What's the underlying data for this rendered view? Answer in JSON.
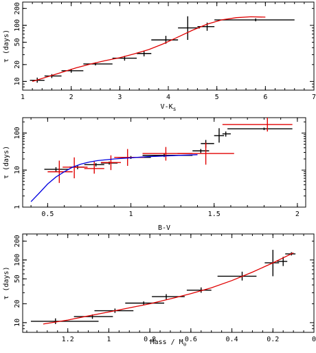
{
  "chart_data": [
    {
      "type": "scatter",
      "xlabel": "V-K",
      "xlabel_sub": "s",
      "ylabel": "τ (days)",
      "xscale": "linear",
      "yscale": "log",
      "xlim": [
        1,
        7
      ],
      "ylim": [
        7,
        260
      ],
      "x_ticks": [
        1,
        2,
        3,
        4,
        5,
        6,
        7
      ],
      "y_ticks": [
        10,
        20,
        50,
        100,
        200
      ],
      "series": [
        {
          "style": "black errorbar",
          "points": [
            {
              "x": 1.3,
              "y": 10.5,
              "xerr": [
                1.15,
                1.45
              ],
              "yerr": [
                9.5,
                11.7
              ]
            },
            {
              "x": 1.6,
              "y": 12.5,
              "xerr": [
                1.45,
                1.8
              ],
              "yerr": [
                11.5,
                13.5
              ]
            },
            {
              "x": 2.0,
              "y": 15.5,
              "xerr": [
                1.8,
                2.25
              ],
              "yerr": [
                14.3,
                16.8
              ]
            },
            {
              "x": 2.5,
              "y": 20.5,
              "xerr": [
                2.25,
                2.85
              ],
              "yerr": [
                19.3,
                21.8
              ]
            },
            {
              "x": 3.1,
              "y": 26.0,
              "xerr": [
                2.85,
                3.35
              ],
              "yerr": [
                23.5,
                28.5
              ]
            },
            {
              "x": 3.5,
              "y": 31.5,
              "xerr": [
                3.35,
                3.65
              ],
              "yerr": [
                28.0,
                35.5
              ]
            },
            {
              "x": 3.95,
              "y": 55.0,
              "xerr": [
                3.65,
                4.2
              ],
              "yerr": [
                47.0,
                65.0
              ]
            },
            {
              "x": 4.4,
              "y": 90.0,
              "xerr": [
                4.2,
                4.65
              ],
              "yerr": [
                55.0,
                145.0
              ]
            },
            {
              "x": 4.8,
              "y": 95.0,
              "xerr": [
                4.6,
                4.95
              ],
              "yerr": [
                80.0,
                112.0
              ]
            },
            {
              "x": 5.8,
              "y": 125.0,
              "xerr": [
                4.95,
                6.6
              ],
              "yerr": [
                118.0,
                133.0
              ]
            }
          ]
        },
        {
          "style": "red fit line",
          "color": "#e00000",
          "x": [
            1.2,
            1.5,
            1.8,
            2.1,
            2.4,
            2.7,
            3.0,
            3.3,
            3.6,
            3.9,
            4.2,
            4.5,
            4.8,
            5.1,
            5.4,
            5.7,
            6.0
          ],
          "y": [
            10.0,
            12.0,
            14.5,
            17.5,
            20.5,
            23.5,
            26.5,
            31.0,
            37.0,
            47.0,
            62.0,
            82.0,
            105.0,
            125.0,
            137.0,
            142.0,
            140.0
          ]
        }
      ]
    },
    {
      "type": "scatter",
      "xlabel": "B-V",
      "ylabel": "τ (days)",
      "xscale": "linear",
      "yscale": "log",
      "xlim": [
        0.35,
        2.05
      ],
      "ylim": [
        1,
        260
      ],
      "x_ticks": [
        0.5,
        1,
        1.5,
        2
      ],
      "y_ticks": [
        1,
        10,
        100
      ],
      "series": [
        {
          "style": "black errorbar",
          "points": [
            {
              "x": 0.55,
              "y": 10.5,
              "xerr": [
                0.48,
                0.63
              ],
              "yerr": [
                9.0,
                12.0
              ]
            },
            {
              "x": 0.68,
              "y": 12.0,
              "xerr": [
                0.63,
                0.72
              ],
              "yerr": [
                10.5,
                13.5
              ]
            },
            {
              "x": 0.79,
              "y": 14.0,
              "xerr": [
                0.72,
                0.84
              ],
              "yerr": [
                12.5,
                15.5
              ]
            },
            {
              "x": 0.87,
              "y": 15.5,
              "xerr": [
                0.82,
                0.92
              ],
              "yerr": [
                14.0,
                17.0
              ]
            },
            {
              "x": 1.0,
              "y": 22.0,
              "xerr": [
                0.92,
                1.12
              ],
              "yerr": [
                20.0,
                24.0
              ]
            },
            {
              "x": 1.2,
              "y": 25.0,
              "xerr": [
                1.07,
                1.37
              ],
              "yerr": [
                22.5,
                27.5
              ]
            },
            {
              "x": 1.42,
              "y": 33.0,
              "xerr": [
                1.37,
                1.47
              ],
              "yerr": [
                29.0,
                37.0
              ]
            },
            {
              "x": 1.45,
              "y": 52.0,
              "xerr": [
                1.42,
                1.5
              ],
              "yerr": [
                40.0,
                65.0
              ]
            },
            {
              "x": 1.53,
              "y": 85.0,
              "xerr": [
                1.5,
                1.56
              ],
              "yerr": [
                55.0,
                135.0
              ]
            },
            {
              "x": 1.57,
              "y": 95.0,
              "xerr": [
                1.55,
                1.6
              ],
              "yerr": [
                80.0,
                110.0
              ]
            },
            {
              "x": 1.8,
              "y": 130.0,
              "xerr": [
                1.58,
                1.97
              ],
              "yerr": [
                120.0,
                140.0
              ]
            }
          ]
        },
        {
          "style": "red errorbar",
          "color": "#e00000",
          "points": [
            {
              "x": 0.57,
              "y": 9.0,
              "xerr": [
                0.5,
                0.65
              ],
              "yerr": [
                4.5,
                18.0
              ]
            },
            {
              "x": 0.66,
              "y": 12.0,
              "xerr": [
                0.59,
                0.74
              ],
              "yerr": [
                6.0,
                22.0
              ]
            },
            {
              "x": 0.78,
              "y": 11.0,
              "xerr": [
                0.72,
                0.84
              ],
              "yerr": [
                8.0,
                17.0
              ]
            },
            {
              "x": 0.88,
              "y": 16.0,
              "xerr": [
                0.82,
                0.94
              ],
              "yerr": [
                10.0,
                25.0
              ]
            },
            {
              "x": 0.98,
              "y": 22.0,
              "xerr": [
                0.9,
                1.08
              ],
              "yerr": [
                13.0,
                37.0
              ]
            },
            {
              "x": 1.21,
              "y": 28.0,
              "xerr": [
                1.07,
                1.37
              ],
              "yerr": [
                18.0,
                42.0
              ]
            },
            {
              "x": 1.45,
              "y": 28.0,
              "xerr": [
                1.28,
                1.62
              ],
              "yerr": [
                14.0,
                55.0
              ]
            },
            {
              "x": 1.82,
              "y": 170.0,
              "xerr": [
                1.55,
                1.97
              ],
              "yerr": [
                110.0,
                260.0
              ]
            }
          ]
        },
        {
          "style": "blue fit line",
          "color": "#0000e0",
          "x": [
            0.4,
            0.45,
            0.5,
            0.55,
            0.6,
            0.65,
            0.7,
            0.75,
            0.8,
            0.9,
            1.0,
            1.1,
            1.2,
            1.3,
            1.4
          ],
          "y": [
            1.4,
            2.4,
            4.2,
            6.5,
            9.0,
            12.0,
            14.5,
            16.5,
            18.0,
            20.0,
            21.5,
            23.0,
            24.0,
            25.0,
            26.0
          ]
        }
      ]
    },
    {
      "type": "scatter",
      "xlabel": "Mass / M",
      "xlabel_sub": "⊙",
      "ylabel": "τ (days)",
      "xscale": "linear",
      "x_reversed": true,
      "yscale": "log",
      "xlim": [
        1.42,
        0.0
      ],
      "ylim": [
        7,
        260
      ],
      "x_ticks": [
        1.2,
        1,
        0.8,
        0.6,
        0.4,
        0.2,
        0
      ],
      "y_ticks": [
        10,
        20,
        50,
        100,
        200
      ],
      "series": [
        {
          "style": "black errorbar",
          "points": [
            {
              "x": 1.26,
              "y": 10.5,
              "xerr": [
                1.05,
                1.38
              ],
              "yerr": [
                9.5,
                11.7
              ]
            },
            {
              "x": 1.08,
              "y": 12.5,
              "xerr": [
                0.98,
                1.17
              ],
              "yerr": [
                11.5,
                13.5
              ]
            },
            {
              "x": 0.97,
              "y": 15.5,
              "xerr": [
                0.88,
                1.07
              ],
              "yerr": [
                14.3,
                16.8
              ]
            },
            {
              "x": 0.83,
              "y": 20.5,
              "xerr": [
                0.73,
                0.92
              ],
              "yerr": [
                19.3,
                21.8
              ]
            },
            {
              "x": 0.72,
              "y": 26.0,
              "xerr": [
                0.63,
                0.79
              ],
              "yerr": [
                23.5,
                28.5
              ]
            },
            {
              "x": 0.55,
              "y": 33.0,
              "xerr": [
                0.5,
                0.62
              ],
              "yerr": [
                30.0,
                36.5
              ]
            },
            {
              "x": 0.35,
              "y": 55.0,
              "xerr": [
                0.28,
                0.47
              ],
              "yerr": [
                47.0,
                65.0
              ]
            },
            {
              "x": 0.2,
              "y": 90.0,
              "xerr": [
                0.17,
                0.24
              ],
              "yerr": [
                55.0,
                145.0
              ]
            },
            {
              "x": 0.15,
              "y": 95.0,
              "xerr": [
                0.13,
                0.18
              ],
              "yerr": [
                80.0,
                112.0
              ]
            },
            {
              "x": 0.11,
              "y": 125.0,
              "xerr": [
                0.09,
                0.14
              ],
              "yerr": [
                118.0,
                133.0
              ]
            }
          ]
        },
        {
          "style": "red fit line",
          "color": "#e00000",
          "x": [
            1.32,
            1.2,
            1.1,
            1.0,
            0.9,
            0.8,
            0.7,
            0.6,
            0.5,
            0.4,
            0.3,
            0.2,
            0.1
          ],
          "y": [
            9.5,
            11.0,
            12.8,
            14.8,
            17.2,
            20.0,
            24.0,
            29.0,
            36.0,
            47.0,
            64.0,
            90.0,
            130.0
          ]
        }
      ]
    }
  ]
}
